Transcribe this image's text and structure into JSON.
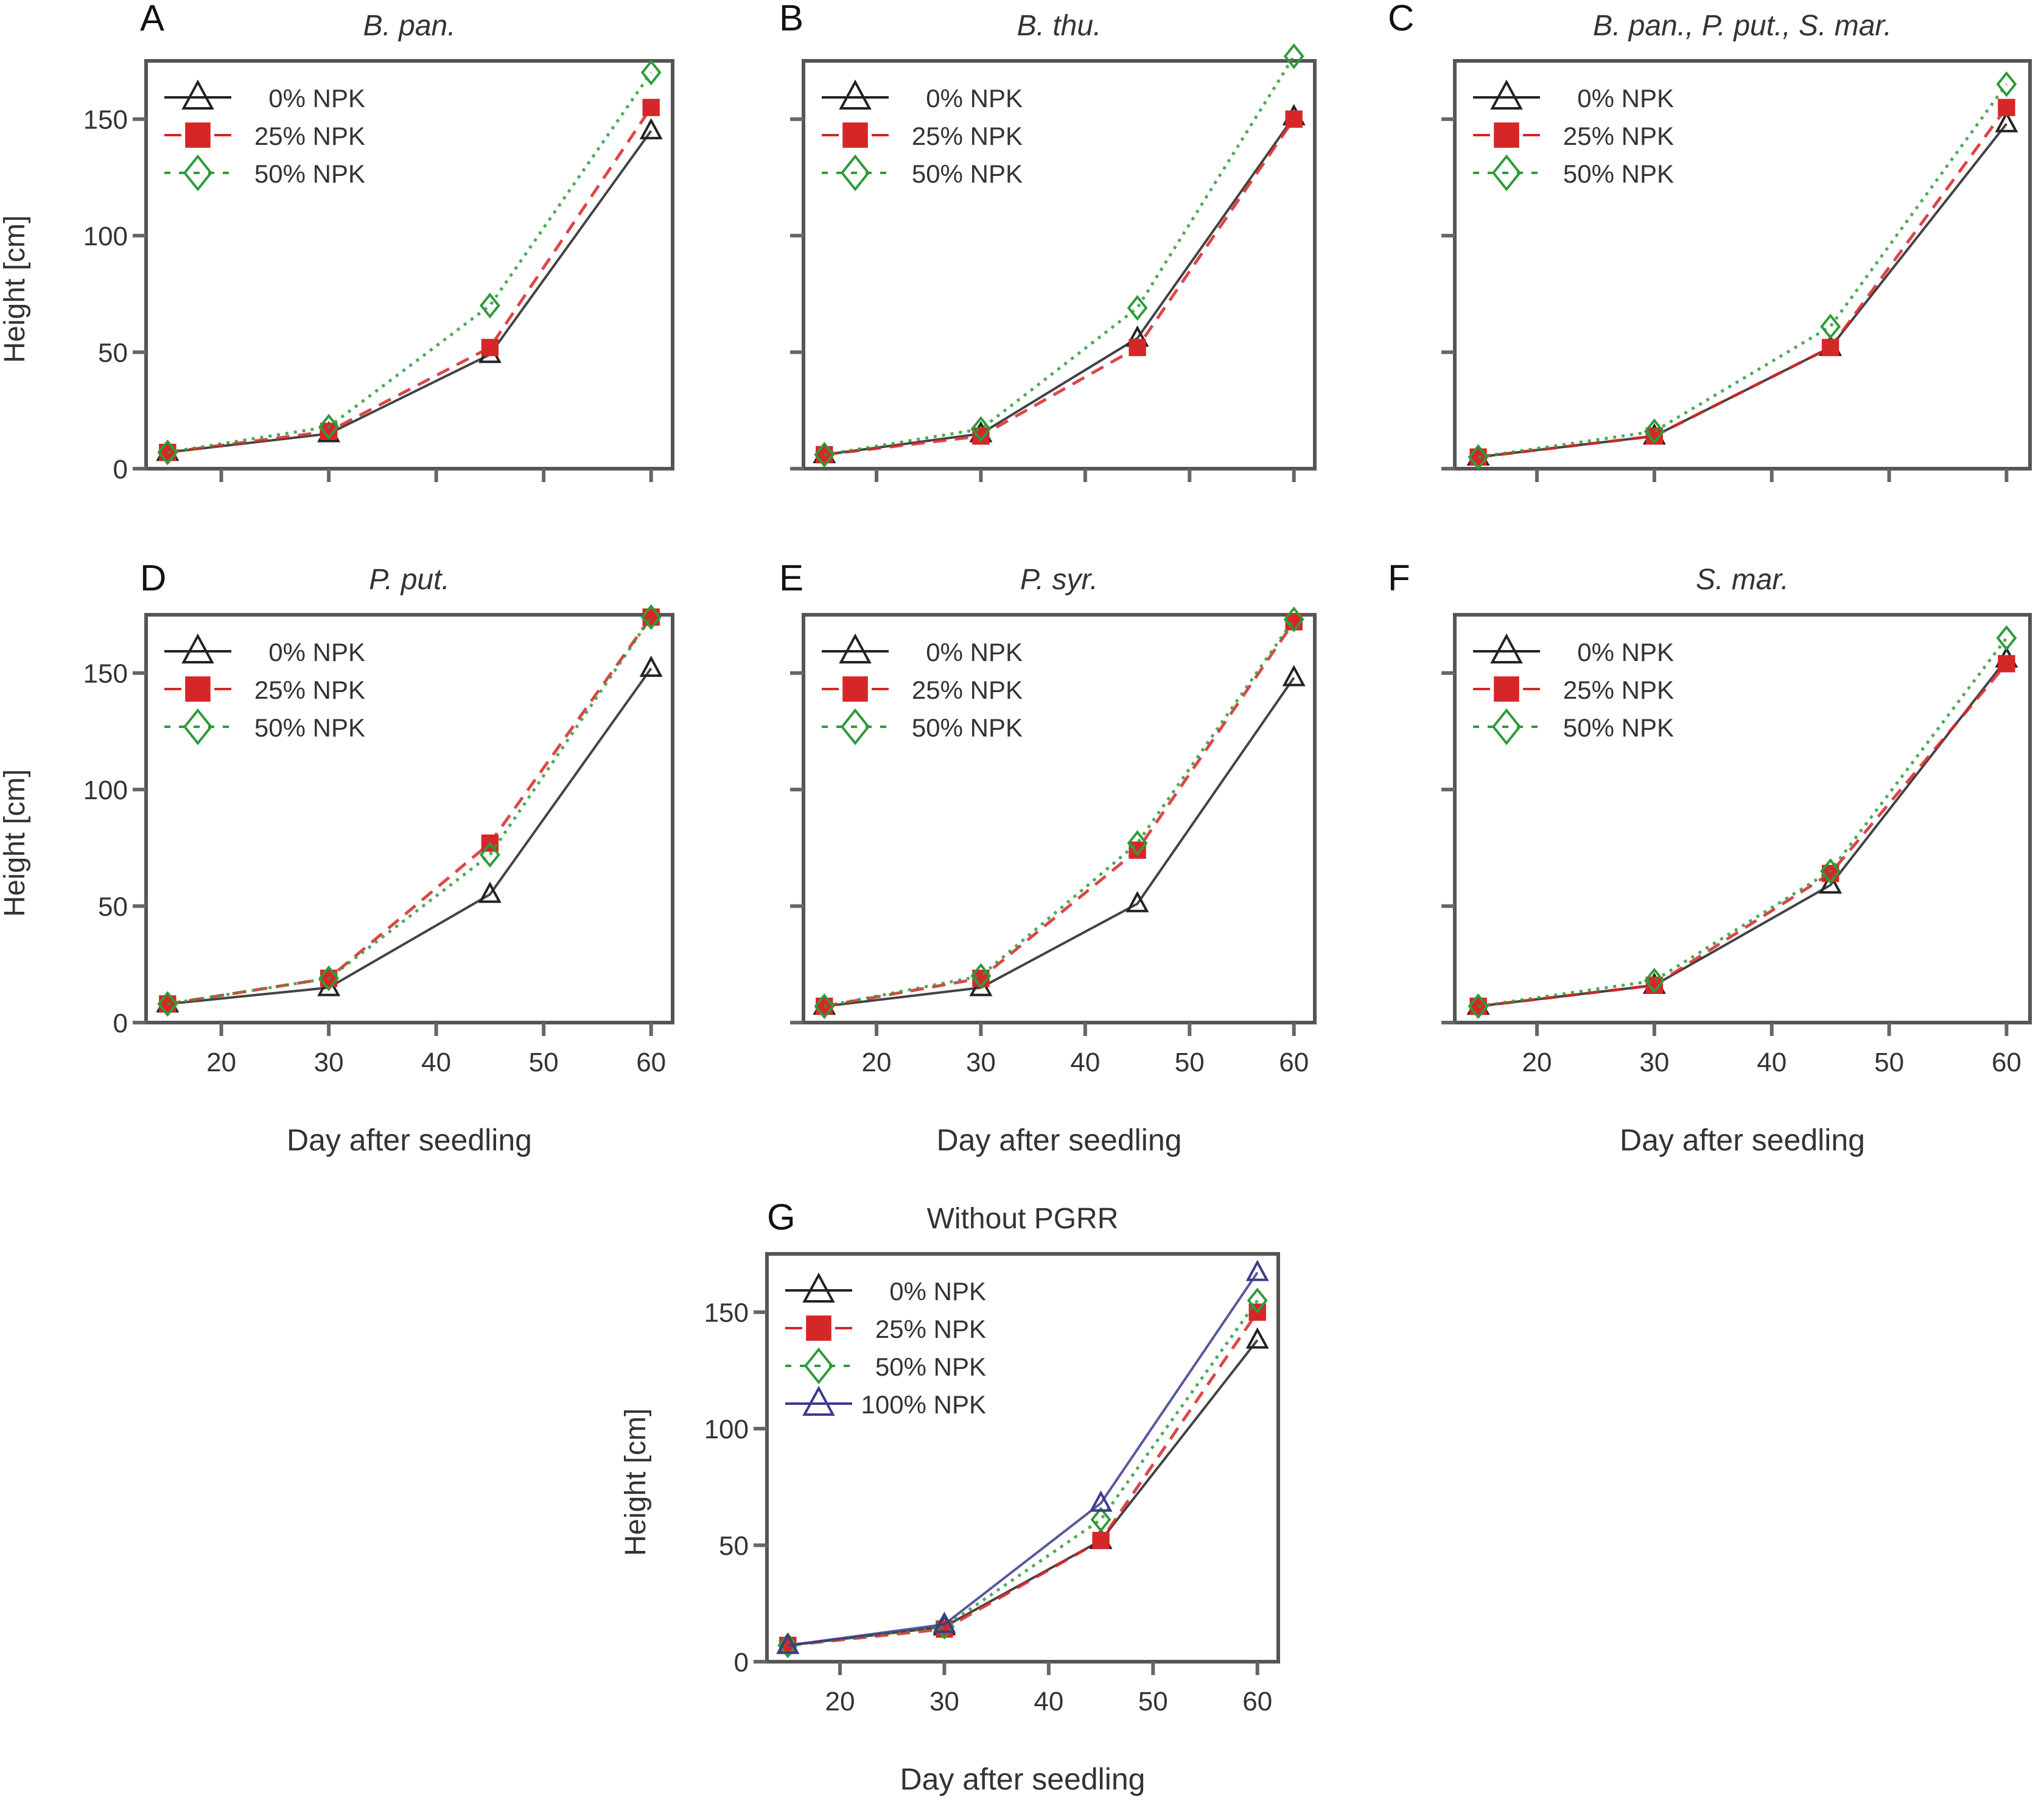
{
  "figure": {
    "x_axis_label": "Day after seedling",
    "y_axis_label": "Height [cm]"
  },
  "legend_styles": {
    "0% NPK": {
      "color": "#222222",
      "marker": "triangle-open",
      "line": "solid"
    },
    "25% NPK": {
      "color": "#d62728",
      "marker": "square-filled",
      "line": "dashed"
    },
    "50% NPK": {
      "color": "#2e9b3a",
      "marker": "diamond-open",
      "line": "dotted"
    },
    "100% NPK": {
      "color": "#3b3a8c",
      "marker": "triangle-open",
      "line": "solid"
    }
  },
  "chart_data": [
    {
      "id": "A",
      "letter": "A",
      "type": "line",
      "title": "B. pan.",
      "title_italic": true,
      "x": [
        15,
        30,
        45,
        60
      ],
      "xlim": [
        13,
        62
      ],
      "ylim": [
        0,
        175
      ],
      "xticks": [
        20,
        30,
        40,
        50,
        60
      ],
      "yticks": [
        0,
        50,
        100,
        150
      ],
      "show_xtick_labels": false,
      "show_ytick_labels": true,
      "show_xlabel": false,
      "show_ylabel": true,
      "xlabel": "",
      "ylabel": "Height [cm]",
      "legend": "top-left",
      "series": [
        {
          "name": "0% NPK",
          "values": [
            7,
            15,
            49,
            145
          ]
        },
        {
          "name": "25% NPK",
          "values": [
            7,
            16,
            52,
            155
          ]
        },
        {
          "name": "50% NPK",
          "values": [
            7,
            18,
            70,
            170
          ]
        }
      ]
    },
    {
      "id": "B",
      "letter": "B",
      "type": "line",
      "title": "B. thu.",
      "title_italic": true,
      "x": [
        15,
        30,
        45,
        60
      ],
      "xlim": [
        13,
        62
      ],
      "ylim": [
        0,
        175
      ],
      "xticks": [
        20,
        30,
        40,
        50,
        60
      ],
      "yticks": [
        0,
        50,
        100,
        150
      ],
      "show_xtick_labels": false,
      "show_ytick_labels": false,
      "show_xlabel": false,
      "show_ylabel": false,
      "xlabel": "",
      "ylabel": "",
      "legend": "top-left",
      "series": [
        {
          "name": "0% NPK",
          "values": [
            6,
            15,
            56,
            151
          ]
        },
        {
          "name": "25% NPK",
          "values": [
            6,
            14,
            52,
            150
          ]
        },
        {
          "name": "50% NPK",
          "values": [
            6,
            17,
            69,
            177
          ]
        }
      ]
    },
    {
      "id": "C",
      "letter": "C",
      "type": "line",
      "title": "B. pan., P. put., S. mar.",
      "title_italic": true,
      "x": [
        15,
        30,
        45,
        60
      ],
      "xlim": [
        13,
        62
      ],
      "ylim": [
        0,
        175
      ],
      "xticks": [
        20,
        30,
        40,
        50,
        60
      ],
      "yticks": [
        0,
        50,
        100,
        150
      ],
      "show_xtick_labels": false,
      "show_ytick_labels": false,
      "show_xlabel": false,
      "show_ylabel": false,
      "xlabel": "",
      "ylabel": "",
      "legend": "top-left",
      "series": [
        {
          "name": "0% NPK",
          "values": [
            5,
            14,
            52,
            148
          ]
        },
        {
          "name": "25% NPK",
          "values": [
            5,
            14,
            52,
            155
          ]
        },
        {
          "name": "50% NPK",
          "values": [
            5,
            16,
            61,
            165
          ]
        }
      ]
    },
    {
      "id": "D",
      "letter": "D",
      "type": "line",
      "title": "P. put.",
      "title_italic": true,
      "x": [
        15,
        30,
        45,
        60
      ],
      "xlim": [
        13,
        62
      ],
      "ylim": [
        0,
        175
      ],
      "xticks": [
        20,
        30,
        40,
        50,
        60
      ],
      "yticks": [
        0,
        50,
        100,
        150
      ],
      "show_xtick_labels": true,
      "show_ytick_labels": true,
      "show_xlabel": true,
      "show_ylabel": true,
      "xlabel": "Day after seedling",
      "ylabel": "Height [cm]",
      "legend": "top-left",
      "series": [
        {
          "name": "0% NPK",
          "values": [
            8,
            15,
            55,
            152
          ]
        },
        {
          "name": "25% NPK",
          "values": [
            8,
            19,
            77,
            174
          ]
        },
        {
          "name": "50% NPK",
          "values": [
            8,
            19,
            72,
            174
          ]
        }
      ]
    },
    {
      "id": "E",
      "letter": "E",
      "type": "line",
      "title": "P. syr.",
      "title_italic": true,
      "x": [
        15,
        30,
        45,
        60
      ],
      "xlim": [
        13,
        62
      ],
      "ylim": [
        0,
        175
      ],
      "xticks": [
        20,
        30,
        40,
        50,
        60
      ],
      "yticks": [
        0,
        50,
        100,
        150
      ],
      "show_xtick_labels": true,
      "show_ytick_labels": false,
      "show_xlabel": true,
      "show_ylabel": false,
      "xlabel": "Day after seedling",
      "ylabel": "",
      "legend": "top-left",
      "series": [
        {
          "name": "0% NPK",
          "values": [
            7,
            15,
            51,
            148
          ]
        },
        {
          "name": "25% NPK",
          "values": [
            7,
            19,
            74,
            172
          ]
        },
        {
          "name": "50% NPK",
          "values": [
            7,
            20,
            77,
            173
          ]
        }
      ]
    },
    {
      "id": "F",
      "letter": "F",
      "type": "line",
      "title": "S. mar.",
      "title_italic": true,
      "x": [
        15,
        30,
        45,
        60
      ],
      "xlim": [
        13,
        62
      ],
      "ylim": [
        0,
        175
      ],
      "xticks": [
        20,
        30,
        40,
        50,
        60
      ],
      "yticks": [
        0,
        50,
        100,
        150
      ],
      "show_xtick_labels": true,
      "show_ytick_labels": false,
      "show_xlabel": true,
      "show_ylabel": false,
      "xlabel": "Day after seedling",
      "ylabel": "",
      "legend": "top-left",
      "series": [
        {
          "name": "0% NPK",
          "values": [
            7,
            16,
            59,
            156
          ]
        },
        {
          "name": "25% NPK",
          "values": [
            7,
            16,
            64,
            154
          ]
        },
        {
          "name": "50% NPK",
          "values": [
            7,
            18,
            65,
            165
          ]
        }
      ]
    },
    {
      "id": "G",
      "letter": "G",
      "type": "line",
      "title": "Without PGRR",
      "title_italic": false,
      "x": [
        15,
        30,
        45,
        60
      ],
      "xlim": [
        13,
        62
      ],
      "ylim": [
        0,
        175
      ],
      "xticks": [
        20,
        30,
        40,
        50,
        60
      ],
      "yticks": [
        0,
        50,
        100,
        150
      ],
      "show_xtick_labels": true,
      "show_ytick_labels": true,
      "show_xlabel": true,
      "show_ylabel": true,
      "xlabel": "Day after seedling",
      "ylabel": "Height [cm]",
      "legend": "top-left",
      "series": [
        {
          "name": "0% NPK",
          "values": [
            7,
            15,
            52,
            138
          ]
        },
        {
          "name": "25% NPK",
          "values": [
            7,
            14,
            52,
            150
          ]
        },
        {
          "name": "50% NPK",
          "values": [
            7,
            15,
            61,
            155
          ]
        },
        {
          "name": "100% NPK",
          "values": [
            7,
            16,
            68,
            167
          ]
        }
      ]
    }
  ]
}
